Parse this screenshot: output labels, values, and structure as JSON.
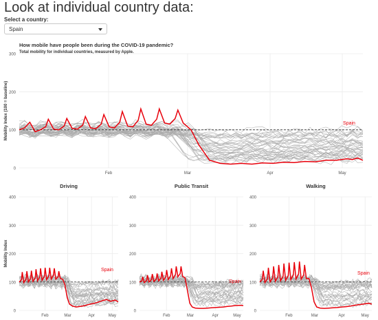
{
  "page": {
    "heading": "Look at individual country data:",
    "select_label": "Select a country:",
    "select_value": "Spain"
  },
  "colors": {
    "highlight": "#e8000b",
    "background_lines": "#a9a9a9",
    "baseline": "#333333"
  },
  "chart_data": [
    {
      "type": "line",
      "title": "How mobile have people been during the COVID-19 pandemic?",
      "subtitle": "Total mobility for individual countries, measured by Apple.",
      "xlabel": "",
      "ylabel": "Mobility Index (100 = baseline)",
      "ylim": [
        0,
        300
      ],
      "yticks": [
        "0",
        "100",
        "200",
        "300"
      ],
      "xticks": [
        "Feb",
        "Mar",
        "Apr",
        "May"
      ],
      "grid": true,
      "reference_line": 100,
      "highlight_label": "Spain",
      "series": [
        {
          "name": "Spain",
          "points": [
            [
              0,
              100
            ],
            [
              2,
              105
            ],
            [
              4,
              120
            ],
            [
              6,
              95
            ],
            [
              8,
              100
            ],
            [
              10,
              108
            ],
            [
              11,
              128
            ],
            [
              13,
              102
            ],
            [
              15,
              100
            ],
            [
              17,
              110
            ],
            [
              18,
              130
            ],
            [
              20,
              104
            ],
            [
              22,
              102
            ],
            [
              24,
              112
            ],
            [
              25,
              135
            ],
            [
              27,
              105
            ],
            [
              29,
              103
            ],
            [
              31,
              115
            ],
            [
              32,
              140
            ],
            [
              34,
              108
            ],
            [
              36,
              105
            ],
            [
              38,
              120
            ],
            [
              39,
              148
            ],
            [
              41,
              110
            ],
            [
              43,
              108
            ],
            [
              45,
              125
            ],
            [
              46,
              155
            ],
            [
              48,
              115
            ],
            [
              50,
              112
            ],
            [
              52,
              128
            ],
            [
              53,
              155
            ],
            [
              55,
              118
            ],
            [
              57,
              115
            ],
            [
              59,
              130
            ],
            [
              60,
              152
            ],
            [
              62,
              118
            ],
            [
              65,
              100
            ],
            [
              68,
              60
            ],
            [
              72,
              20
            ],
            [
              76,
              12
            ],
            [
              80,
              10
            ],
            [
              84,
              12
            ],
            [
              88,
              10
            ],
            [
              92,
              13
            ],
            [
              96,
              12
            ],
            [
              100,
              15
            ],
            [
              104,
              14
            ],
            [
              108,
              17
            ],
            [
              112,
              16
            ],
            [
              116,
              20
            ],
            [
              120,
              20
            ],
            [
              124,
              24
            ],
            [
              126,
              22
            ],
            [
              128,
              26
            ],
            [
              130,
              20
            ]
          ]
        }
      ]
    },
    {
      "type": "line",
      "title": "Driving",
      "ylabel": "Mobility Index",
      "ylim": [
        0,
        400
      ],
      "yticks": [
        "0",
        "100",
        "200",
        "300",
        "400"
      ],
      "xticks": [
        "Feb",
        "Mar",
        "Apr",
        "May"
      ],
      "reference_line": 100,
      "highlight_label": "Spain",
      "series": [
        {
          "name": "Spain",
          "points": [
            [
              0,
              100
            ],
            [
              3,
              108
            ],
            [
              4,
              135
            ],
            [
              6,
              98
            ],
            [
              9,
              110
            ],
            [
              10,
              138
            ],
            [
              12,
              100
            ],
            [
              15,
              112
            ],
            [
              16,
              140
            ],
            [
              18,
              102
            ],
            [
              21,
              115
            ],
            [
              22,
              145
            ],
            [
              24,
              104
            ],
            [
              27,
              118
            ],
            [
              28,
              148
            ],
            [
              30,
              106
            ],
            [
              33,
              120
            ],
            [
              34,
              150
            ],
            [
              36,
              108
            ],
            [
              39,
              122
            ],
            [
              40,
              150
            ],
            [
              42,
              110
            ],
            [
              45,
              124
            ],
            [
              46,
              148
            ],
            [
              48,
              110
            ],
            [
              51,
              118
            ],
            [
              52,
              138
            ],
            [
              54,
              112
            ],
            [
              57,
              110
            ],
            [
              60,
              90
            ],
            [
              63,
              45
            ],
            [
              66,
              22
            ],
            [
              70,
              15
            ],
            [
              75,
              12
            ],
            [
              80,
              14
            ],
            [
              85,
              16
            ],
            [
              90,
              20
            ],
            [
              95,
              23
            ],
            [
              100,
              26
            ],
            [
              105,
              30
            ],
            [
              110,
              35
            ],
            [
              115,
              38
            ],
            [
              120,
              32
            ],
            [
              126,
              36
            ],
            [
              130,
              30
            ]
          ]
        }
      ]
    },
    {
      "type": "line",
      "title": "Public Transit",
      "ylim": [
        0,
        400
      ],
      "yticks": [
        "0",
        "100",
        "200",
        "300",
        "400"
      ],
      "xticks": [
        "Feb",
        "Mar",
        "Apr",
        "May"
      ],
      "reference_line": 100,
      "highlight_label": "Spain",
      "series": [
        {
          "name": "Spain",
          "points": [
            [
              0,
              100
            ],
            [
              3,
              104
            ],
            [
              4,
              118
            ],
            [
              6,
              98
            ],
            [
              9,
              106
            ],
            [
              10,
              124
            ],
            [
              12,
              100
            ],
            [
              15,
              108
            ],
            [
              16,
              128
            ],
            [
              18,
              102
            ],
            [
              21,
              110
            ],
            [
              22,
              130
            ],
            [
              24,
              104
            ],
            [
              27,
              114
            ],
            [
              28,
              136
            ],
            [
              30,
              106
            ],
            [
              33,
              118
            ],
            [
              34,
              142
            ],
            [
              36,
              108
            ],
            [
              39,
              122
            ],
            [
              40,
              148
            ],
            [
              42,
              112
            ],
            [
              45,
              126
            ],
            [
              46,
              155
            ],
            [
              48,
              118
            ],
            [
              51,
              130
            ],
            [
              52,
              155
            ],
            [
              54,
              120
            ],
            [
              57,
              115
            ],
            [
              60,
              70
            ],
            [
              63,
              25
            ],
            [
              66,
              12
            ],
            [
              70,
              8
            ],
            [
              75,
              7
            ],
            [
              80,
              7
            ],
            [
              85,
              8
            ],
            [
              90,
              9
            ],
            [
              95,
              10
            ],
            [
              100,
              11
            ],
            [
              105,
              12
            ],
            [
              110,
              14
            ],
            [
              115,
              15
            ],
            [
              120,
              17
            ],
            [
              126,
              18
            ],
            [
              130,
              17
            ]
          ]
        }
      ]
    },
    {
      "type": "line",
      "title": "Walking",
      "ylim": [
        0,
        400
      ],
      "yticks": [
        "0",
        "100",
        "200",
        "300",
        "400"
      ],
      "xticks": [
        "Feb",
        "Mar",
        "Apr",
        "May"
      ],
      "reference_line": 100,
      "highlight_label": "Spain",
      "series": [
        {
          "name": "Spain",
          "points": [
            [
              0,
              100
            ],
            [
              3,
              110
            ],
            [
              4,
              140
            ],
            [
              6,
              98
            ],
            [
              9,
              112
            ],
            [
              10,
              150
            ],
            [
              12,
              100
            ],
            [
              15,
              115
            ],
            [
              16,
              155
            ],
            [
              18,
              102
            ],
            [
              21,
              118
            ],
            [
              22,
              160
            ],
            [
              24,
              104
            ],
            [
              27,
              120
            ],
            [
              28,
              165
            ],
            [
              30,
              106
            ],
            [
              33,
              122
            ],
            [
              34,
              168
            ],
            [
              36,
              108
            ],
            [
              39,
              125
            ],
            [
              40,
              170
            ],
            [
              42,
              110
            ],
            [
              45,
              128
            ],
            [
              46,
              172
            ],
            [
              48,
              110
            ],
            [
              51,
              125
            ],
            [
              52,
              160
            ],
            [
              54,
              112
            ],
            [
              57,
              112
            ],
            [
              60,
              80
            ],
            [
              63,
              30
            ],
            [
              66,
              12
            ],
            [
              70,
              8
            ],
            [
              75,
              7
            ],
            [
              80,
              8
            ],
            [
              85,
              9
            ],
            [
              90,
              10
            ],
            [
              95,
              12
            ],
            [
              100,
              13
            ],
            [
              105,
              15
            ],
            [
              110,
              18
            ],
            [
              115,
              20
            ],
            [
              120,
              22
            ],
            [
              126,
              25
            ],
            [
              130,
              22
            ]
          ]
        }
      ]
    }
  ]
}
